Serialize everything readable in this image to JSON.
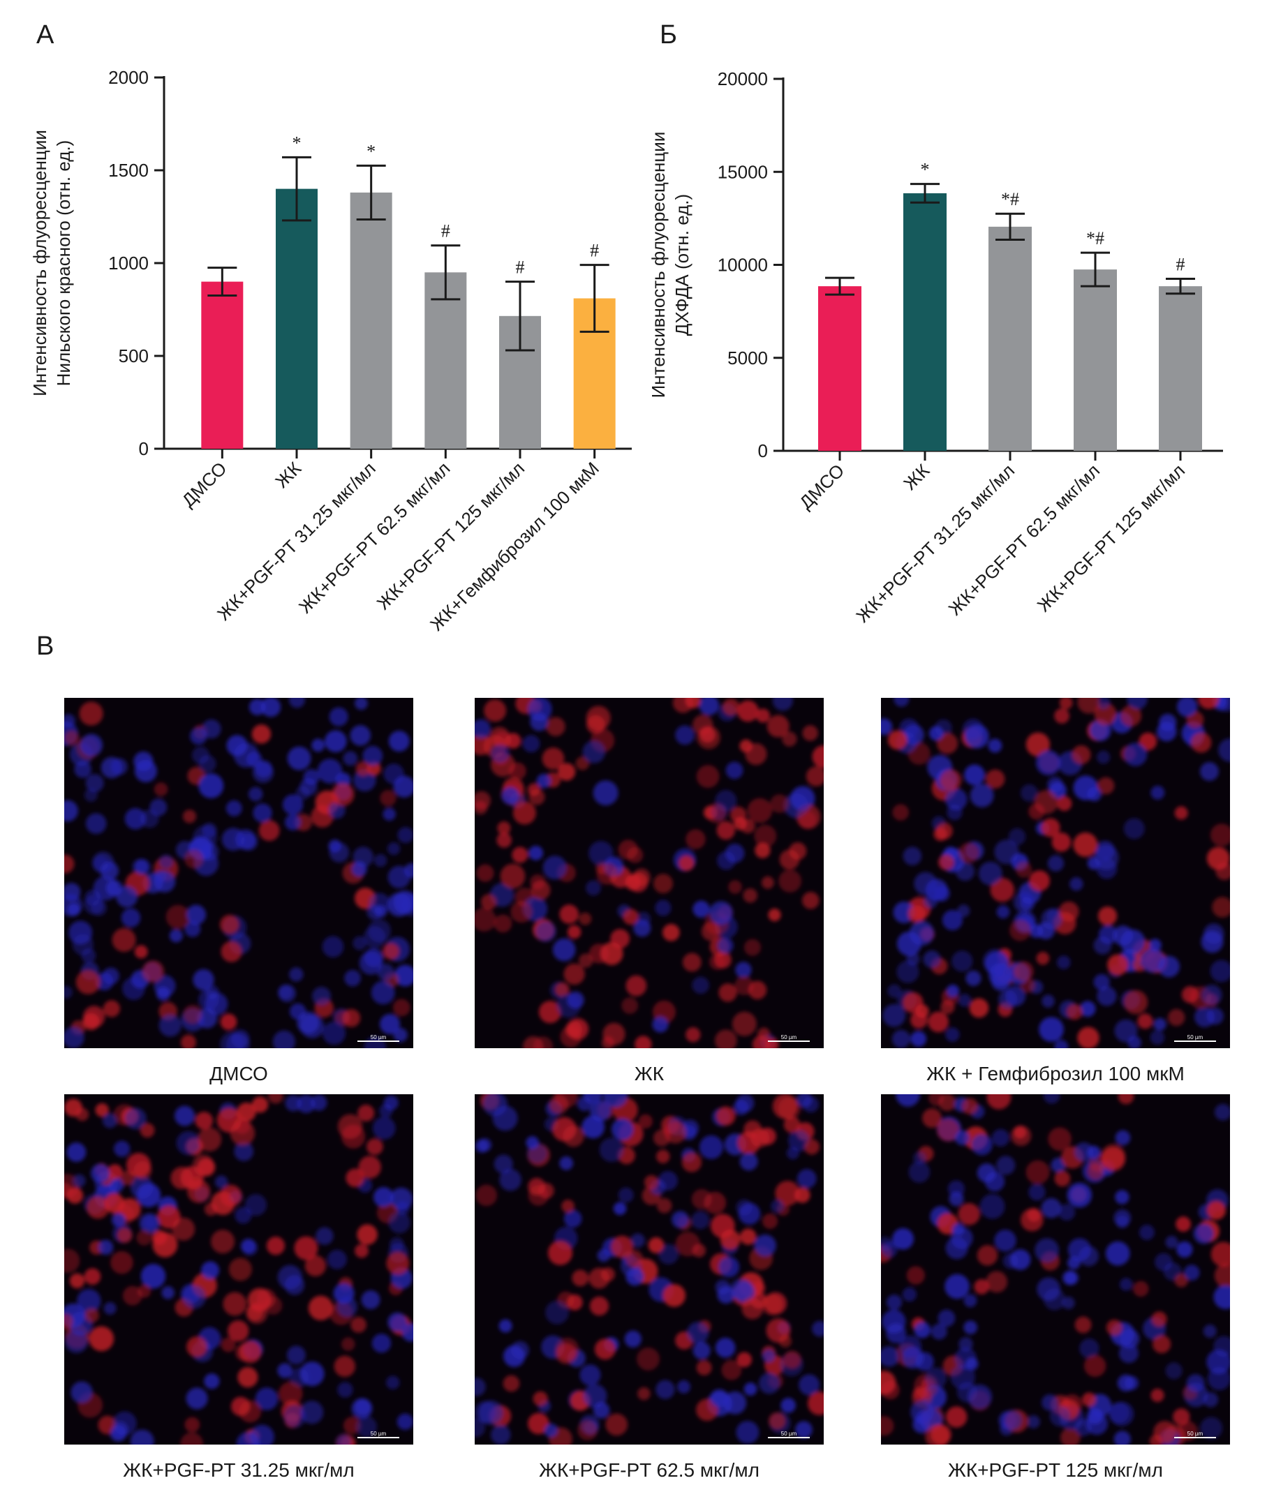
{
  "panels": {
    "a": "А",
    "b": "Б",
    "c": "В"
  },
  "chart_data": [
    {
      "type": "bar",
      "title": "",
      "ylabel_lines": [
        "Интенсивность флуоресценции",
        "Нильского красного (отн. ед.)"
      ],
      "xlabel": "",
      "ylim": [
        0,
        2000
      ],
      "yticks": [
        0,
        500,
        1000,
        1500,
        2000
      ],
      "categories": [
        "ДМСО",
        "ЖК",
        "ЖК+PGF-PT 31.25 мкг/мл",
        "ЖК+PGF-PT 62.5 мкг/мл",
        "ЖК+PGF-PT 125 мкг/мл",
        "ЖК+Гемфиброзил 100 мкМ"
      ],
      "values": [
        900,
        1400,
        1380,
        950,
        715,
        810
      ],
      "errors": [
        75,
        170,
        145,
        145,
        185,
        180
      ],
      "significance": [
        "",
        "*",
        "*",
        "#",
        "#",
        "#"
      ],
      "colors": [
        "#ea1e56",
        "#165a5c",
        "#939598",
        "#939598",
        "#939598",
        "#fbb040"
      ],
      "grid": false,
      "legend": "none"
    },
    {
      "type": "bar",
      "title": "",
      "ylabel_lines": [
        "Интенсивность флуоресценции",
        "ДХФДА (отн. ед.)"
      ],
      "xlabel": "",
      "ylim": [
        0,
        20000
      ],
      "yticks": [
        0,
        5000,
        10000,
        15000,
        20000
      ],
      "categories": [
        "ДМСО",
        "ЖК",
        "ЖК+PGF-PT 31.25 мкг/мл",
        "ЖК+PGF-PT 62.5 мкг/мл",
        "ЖК+PGF-PT 125 мкг/мл"
      ],
      "values": [
        8850,
        13850,
        12050,
        9750,
        8850
      ],
      "errors": [
        450,
        500,
        700,
        900,
        400
      ],
      "significance": [
        "",
        "*",
        "*#",
        "*#",
        "#"
      ],
      "colors": [
        "#ea1e56",
        "#165a5c",
        "#939598",
        "#939598",
        "#939598"
      ],
      "grid": false,
      "legend": "none"
    }
  ],
  "micrographs": {
    "scale_label": "50 µm",
    "images": [
      {
        "caption": "ДМСО",
        "red": 0.25,
        "blue": 0.75
      },
      {
        "caption": "ЖК",
        "red": 0.85,
        "blue": 0.25
      },
      {
        "caption": "ЖК + Гемфиброзил 100 мкМ",
        "red": 0.45,
        "blue": 0.6
      },
      {
        "caption": "ЖК+PGF-PT 31.25 мкг/мл",
        "red": 0.6,
        "blue": 0.45
      },
      {
        "caption": "ЖК+PGF-PT 62.5 мкг/мл",
        "red": 0.55,
        "blue": 0.6
      },
      {
        "caption": "ЖК+PGF-PT 125 мкг/мл",
        "red": 0.3,
        "blue": 0.55
      }
    ]
  }
}
